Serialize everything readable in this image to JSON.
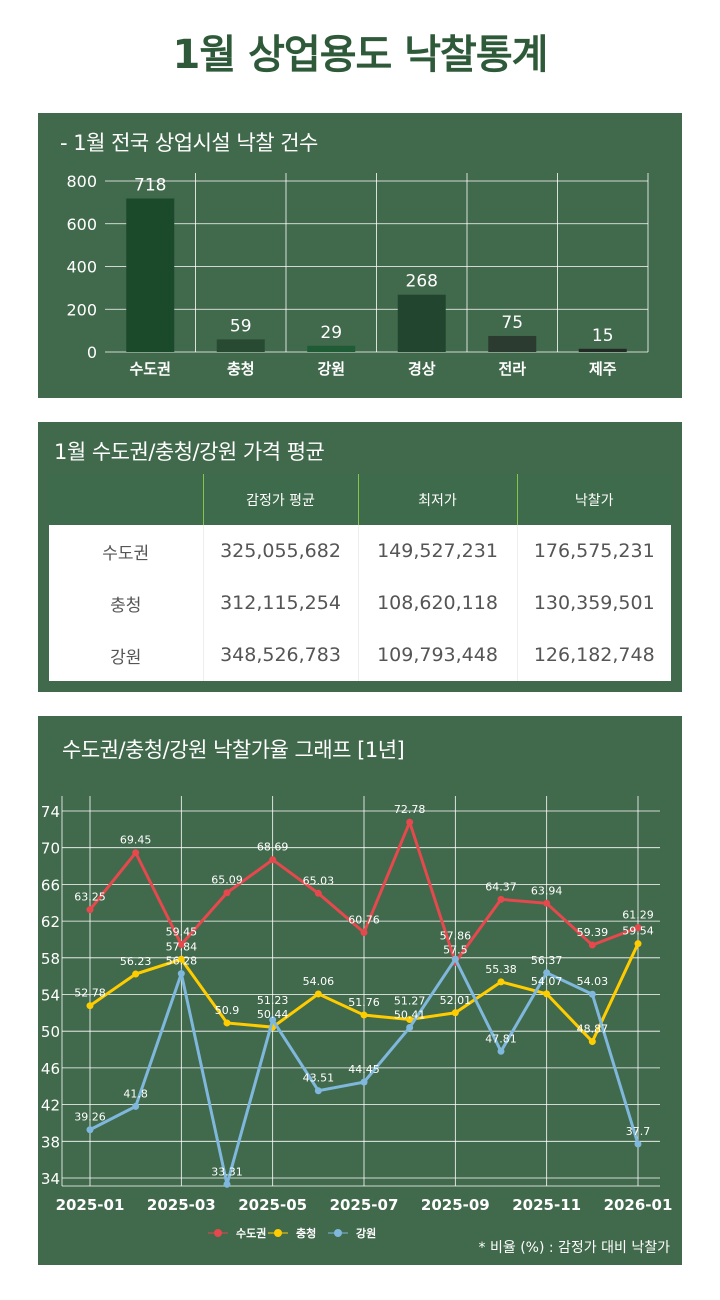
{
  "page_title": "1월 상업용도 낙찰통계",
  "chart_data": [
    {
      "type": "bar",
      "title": "- 1월 전국 상업시설 낙찰 건수",
      "categories": [
        "수도권",
        "충청",
        "강원",
        "경상",
        "전라",
        "제주"
      ],
      "values": [
        718,
        59,
        29,
        268,
        75,
        15
      ],
      "ylim": [
        0,
        800
      ],
      "yticks": [
        0,
        200,
        400,
        600,
        800
      ],
      "colors": [
        "#1b4a2a",
        "#284a33",
        "#1f5c36",
        "#22452f",
        "#2b3b30",
        "#222a25"
      ],
      "grid": true
    },
    {
      "type": "line",
      "title": "수도권/충청/강원 낙찰가율 그래프 [1년]",
      "x": [
        "2025-01",
        "2025-02",
        "2025-03",
        "2025-04",
        "2025-05",
        "2025-06",
        "2025-07",
        "2025-08",
        "2025-09",
        "2025-10",
        "2025-11",
        "2025-12",
        "2026-01"
      ],
      "xticks": [
        "2025-01",
        "2025-03",
        "2025-05",
        "2025-07",
        "2025-09",
        "2025-11",
        "2026-01"
      ],
      "ylim": [
        33,
        76
      ],
      "yticks": [
        34,
        38,
        42,
        46,
        50,
        54,
        58,
        62,
        66,
        70,
        74
      ],
      "series": [
        {
          "name": "수도권",
          "color": "#e5484d",
          "values": [
            63.25,
            69.45,
            59.45,
            65.09,
            68.69,
            65.03,
            60.76,
            72.78,
            57.5,
            64.37,
            63.94,
            59.39,
            61.29
          ]
        },
        {
          "name": "충청",
          "color": "#ffcc00",
          "values": [
            52.78,
            56.23,
            57.84,
            50.9,
            50.44,
            54.06,
            51.76,
            51.27,
            52.01,
            55.38,
            54.07,
            48.87,
            59.54
          ]
        },
        {
          "name": "강원",
          "color": "#7fb8dc",
          "values": [
            39.26,
            41.8,
            56.28,
            33.31,
            51.23,
            43.51,
            44.45,
            50.41,
            57.86,
            47.81,
            56.37,
            54.03,
            37.7
          ]
        }
      ],
      "legend": "bottom",
      "note": "* 비율 (%) : 감정가 대비 낙찰가",
      "grid": true
    }
  ],
  "table": {
    "title": "1월 수도권/충청/강원 가격 평균",
    "headers": [
      "",
      "감정가 평균",
      "최저가",
      "낙찰가"
    ],
    "rows": [
      [
        "수도권",
        "325,055,682",
        "149,527,231",
        "176,575,231"
      ],
      [
        "충청",
        "312,115,254",
        "108,620,118",
        "130,359,501"
      ],
      [
        "강원",
        "348,526,783",
        "109,793,448",
        "126,182,748"
      ]
    ]
  }
}
